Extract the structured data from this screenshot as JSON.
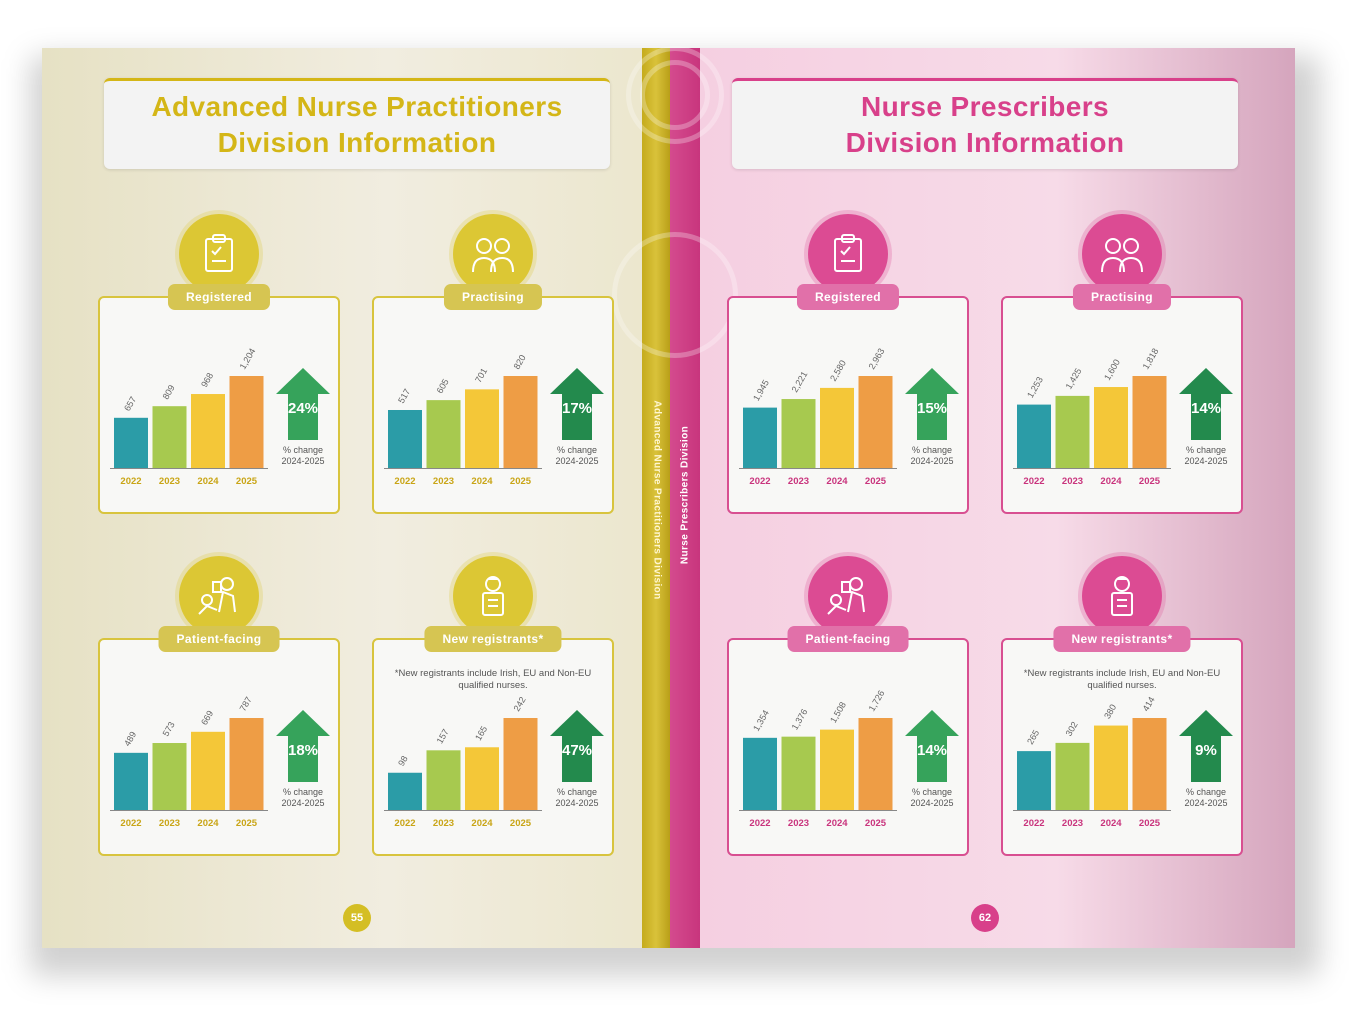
{
  "left_page": {
    "title_line1": "Advanced Nurse Practitioners",
    "title_line2": "Division Information",
    "spine_text": "Advanced Nurse Practitioners Division",
    "page_number": "55",
    "accent_color": "#d4b617"
  },
  "right_page": {
    "title_line1": "Nurse Prescribers",
    "title_line2": "Division Information",
    "spine_text": "Nurse Prescribers Division",
    "page_number": "62",
    "accent_color": "#d8408a"
  },
  "change_label": [
    "% change",
    "2024-2025"
  ],
  "chart_data": [
    {
      "id": "anp-registered",
      "type": "bar",
      "label": "Registered",
      "icon": "clipboard-check-icon",
      "categories": [
        "2022",
        "2023",
        "2024",
        "2025"
      ],
      "values": [
        657,
        809,
        968,
        1204
      ],
      "value_labels": [
        "657",
        "809",
        "968",
        "1,204"
      ],
      "change": "24%",
      "change_color": "#36a35b"
    },
    {
      "id": "anp-practising",
      "type": "bar",
      "label": "Practising",
      "icon": "two-doctors-icon",
      "categories": [
        "2022",
        "2023",
        "2024",
        "2025"
      ],
      "values": [
        517,
        605,
        701,
        820
      ],
      "value_labels": [
        "517",
        "605",
        "701",
        "820"
      ],
      "change": "17%",
      "change_color": "#238a4d"
    },
    {
      "id": "anp-patient-facing",
      "type": "bar",
      "label": "Patient-facing",
      "icon": "patient-care-icon",
      "categories": [
        "2022",
        "2023",
        "2024",
        "2025"
      ],
      "values": [
        489,
        573,
        669,
        787
      ],
      "value_labels": [
        "489",
        "573",
        "669",
        "787"
      ],
      "change": "18%",
      "change_color": "#36a35b"
    },
    {
      "id": "anp-new-registrants",
      "type": "bar",
      "label": "New registrants",
      "label_suffix": "*",
      "icon": "nurse-document-icon",
      "note": "*New registrants include Irish, EU and Non-EU qualified nurses.",
      "categories": [
        "2022",
        "2023",
        "2024",
        "2025"
      ],
      "values": [
        98,
        157,
        165,
        242
      ],
      "value_labels": [
        "98",
        "157",
        "165",
        "242"
      ],
      "change": "47%",
      "change_color": "#238a4d"
    },
    {
      "id": "np-registered",
      "type": "bar",
      "label": "Registered",
      "icon": "clipboard-check-icon",
      "categories": [
        "2022",
        "2023",
        "2024",
        "2025"
      ],
      "values": [
        1945,
        2221,
        2580,
        2963
      ],
      "value_labels": [
        "1,945",
        "2,221",
        "2,580",
        "2,963"
      ],
      "change": "15%",
      "change_color": "#36a35b"
    },
    {
      "id": "np-practising",
      "type": "bar",
      "label": "Practising",
      "icon": "two-doctors-icon",
      "categories": [
        "2022",
        "2023",
        "2024",
        "2025"
      ],
      "values": [
        1253,
        1425,
        1600,
        1818
      ],
      "value_labels": [
        "1,253",
        "1,425",
        "1,600",
        "1,818"
      ],
      "change": "14%",
      "change_color": "#238a4d"
    },
    {
      "id": "np-patient-facing",
      "type": "bar",
      "label": "Patient-facing",
      "icon": "patient-care-icon",
      "categories": [
        "2022",
        "2023",
        "2024",
        "2025"
      ],
      "values": [
        1354,
        1376,
        1508,
        1726
      ],
      "value_labels": [
        "1,354",
        "1,376",
        "1,508",
        "1,726"
      ],
      "change": "14%",
      "change_color": "#36a35b"
    },
    {
      "id": "np-new-registrants",
      "type": "bar",
      "label": "New registrants",
      "label_suffix": "*",
      "icon": "nurse-document-icon",
      "note": "*New registrants include Irish, EU and Non-EU qualified nurses.",
      "categories": [
        "2022",
        "2023",
        "2024",
        "2025"
      ],
      "values": [
        265,
        302,
        380,
        414
      ],
      "value_labels": [
        "265",
        "302",
        "380",
        "414"
      ],
      "change": "9%",
      "change_color": "#238a4d"
    }
  ],
  "colors": {
    "bar_2022": "#2b9ca7",
    "bar_2023": "#a7c94f",
    "bar_2024": "#f4c738",
    "bar_2025": "#ee9d45",
    "year_text_left": "#c9a516",
    "year_text_right": "#c9347d"
  }
}
